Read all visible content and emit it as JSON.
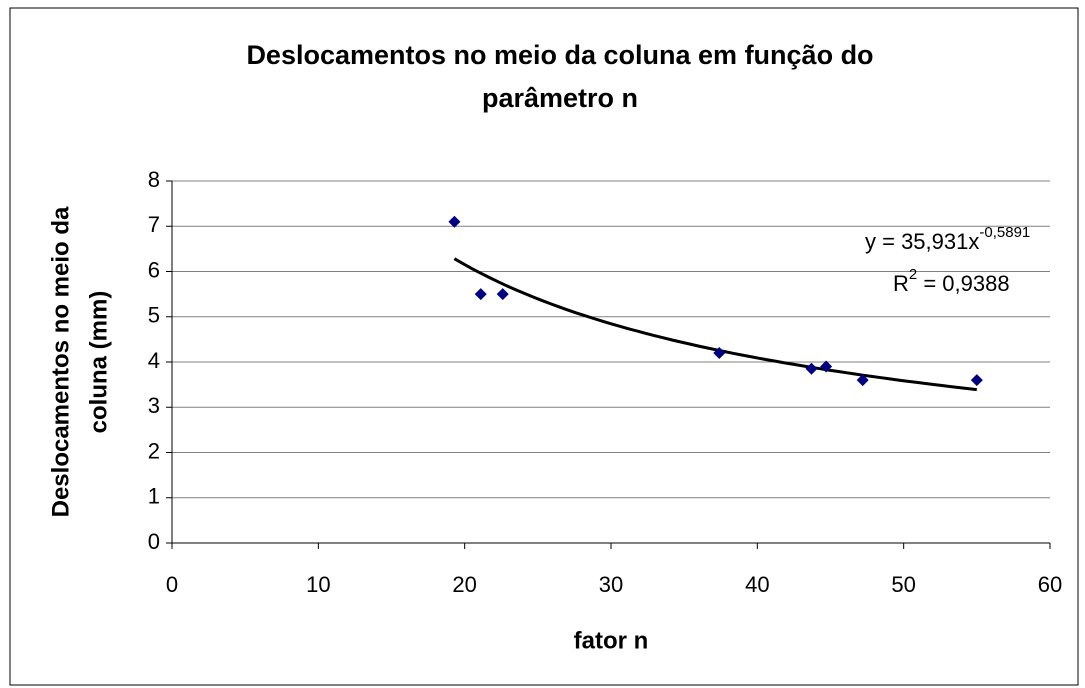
{
  "chart_data": {
    "type": "scatter",
    "title": [
      "Deslocamentos no meio da coluna em função do",
      "parâmetro n"
    ],
    "xlabel": "fator n",
    "ylabel": [
      "Deslocamentos no meio da",
      "coluna (mm)"
    ],
    "x": [
      19.3,
      21.1,
      22.6,
      37.4,
      43.7,
      44.7,
      47.2,
      55.0
    ],
    "values": [
      7.1,
      5.5,
      5.5,
      4.2,
      3.85,
      3.9,
      3.6,
      3.6
    ],
    "color": "#000080",
    "xlim": [
      0,
      60
    ],
    "xticks": [
      0,
      10,
      20,
      30,
      40,
      50,
      60
    ],
    "ylim": [
      0,
      8
    ],
    "yticks": [
      0,
      1,
      2,
      3,
      4,
      5,
      6,
      7,
      8
    ],
    "grid": true,
    "trendline": {
      "type": "power",
      "a": 35.931,
      "b": -0.5891,
      "xrange": [
        19.3,
        55.0
      ],
      "color": "#000000"
    },
    "equation": {
      "text": "y = 35,931x",
      "exponent": "-0,5891"
    },
    "r_squared": {
      "text": "R",
      "sup": "2",
      "rest": " = 0,9388"
    }
  }
}
